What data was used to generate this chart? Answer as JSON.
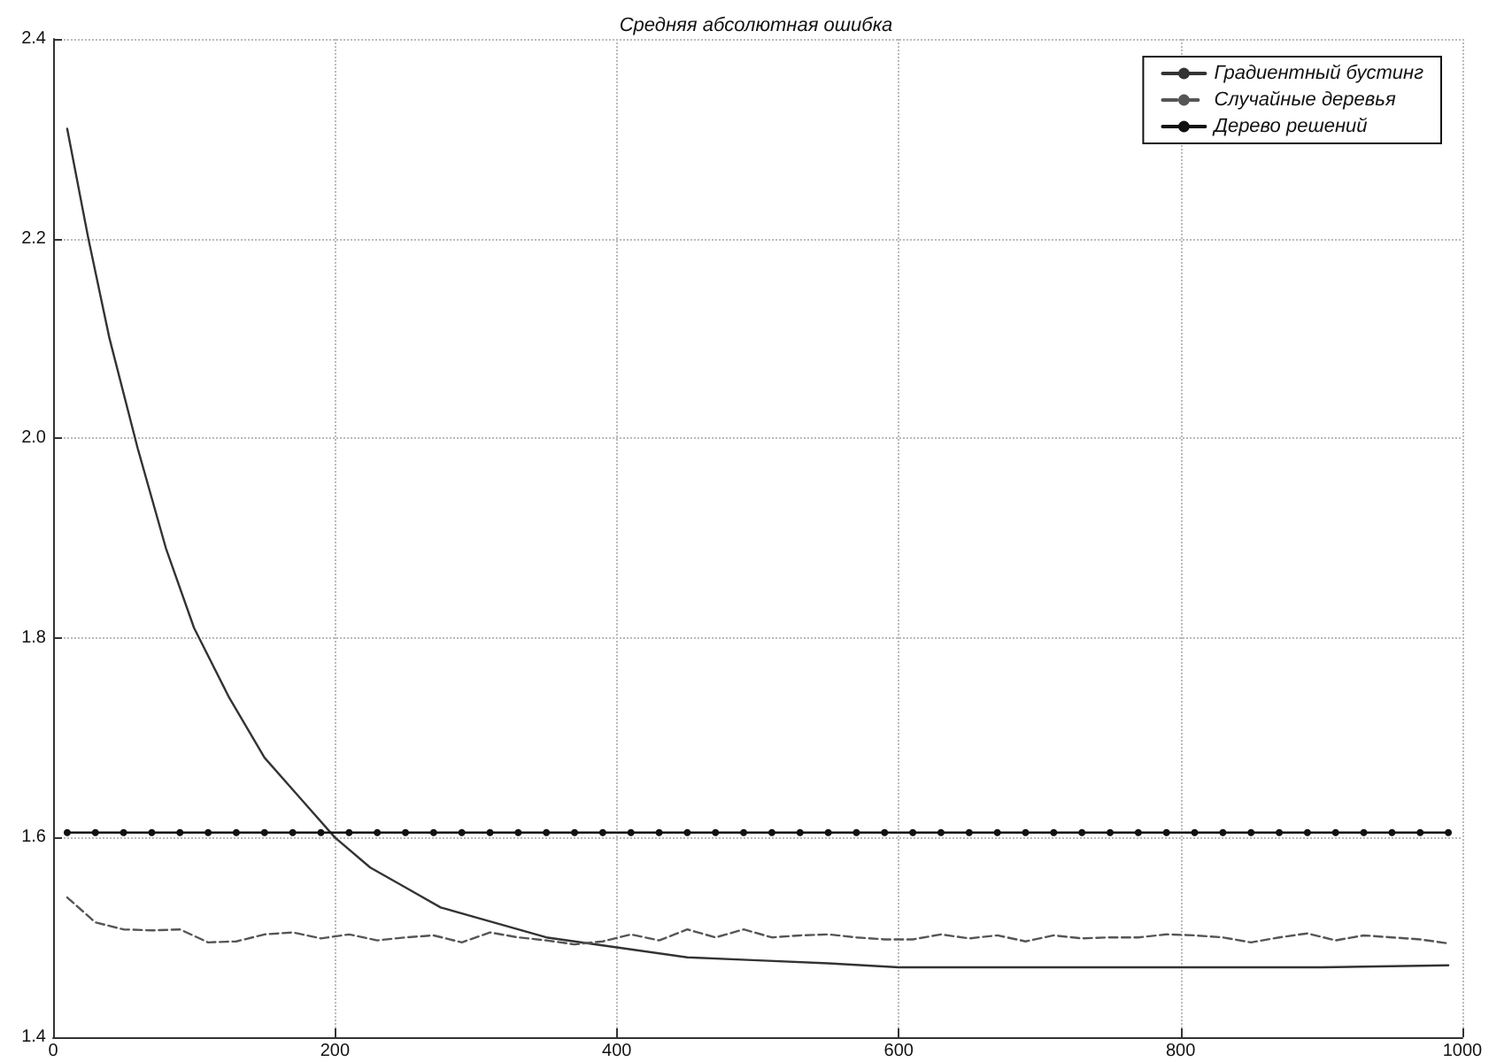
{
  "chart_data": {
    "type": "line",
    "title": "Средняя абсолютная ошибка",
    "xlim": [
      0,
      1000
    ],
    "xticks": [
      0,
      200,
      400,
      600,
      800,
      1000
    ],
    "ylim": [
      1.4,
      2.4
    ],
    "yticks": [
      1.4,
      1.6,
      1.8,
      {
        "value": 2,
        "label": "2.0"
      },
      2.2,
      2.4
    ],
    "grid": true,
    "legend": "top right",
    "series": [
      {
        "name": "Градиентный бустинг",
        "color": "#333333",
        "line_style": "solid",
        "marker": "none",
        "x": [
          10,
          25,
          40,
          60,
          80,
          100,
          125,
          150,
          175,
          200,
          225,
          250,
          275,
          300,
          350,
          400,
          450,
          500,
          550,
          600,
          700,
          800,
          900,
          990
        ],
        "values": [
          2.31,
          2.2,
          2.1,
          1.99,
          1.89,
          1.81,
          1.74,
          1.68,
          1.64,
          1.6,
          1.57,
          1.55,
          1.53,
          1.52,
          1.5,
          1.49,
          1.48,
          1.477,
          1.474,
          1.47,
          1.47,
          1.47,
          1.47,
          1.472
        ]
      },
      {
        "name": "Случайные деревья",
        "color": "#555555",
        "line_style": "dashed",
        "marker": "none",
        "x": [
          10,
          30,
          50,
          70,
          90,
          110,
          130,
          150,
          170,
          190,
          210,
          230,
          250,
          270,
          290,
          310,
          330,
          350,
          370,
          390,
          410,
          430,
          450,
          470,
          490,
          510,
          530,
          550,
          570,
          590,
          610,
          630,
          650,
          670,
          690,
          710,
          730,
          750,
          770,
          790,
          810,
          830,
          850,
          870,
          890,
          910,
          930,
          950,
          970,
          990
        ],
        "values": [
          1.54,
          1.515,
          1.508,
          1.507,
          1.508,
          1.495,
          1.496,
          1.503,
          1.505,
          1.499,
          1.503,
          1.497,
          1.5,
          1.502,
          1.495,
          1.505,
          1.5,
          1.497,
          1.493,
          1.496,
          1.503,
          1.497,
          1.508,
          1.5,
          1.508,
          1.5,
          1.502,
          1.503,
          1.5,
          1.498,
          1.498,
          1.503,
          1.499,
          1.502,
          1.496,
          1.502,
          1.499,
          1.5,
          1.5,
          1.503,
          1.502,
          1.5,
          1.495,
          1.5,
          1.504,
          1.497,
          1.502,
          1.5,
          1.498,
          1.494
        ]
      },
      {
        "name": "Дерево решений",
        "color": "#111111",
        "line_style": "solid",
        "marker": "circle",
        "x": [
          10,
          30,
          50,
          70,
          90,
          110,
          130,
          150,
          170,
          190,
          210,
          230,
          250,
          270,
          290,
          310,
          330,
          350,
          370,
          390,
          410,
          430,
          450,
          470,
          490,
          510,
          530,
          550,
          570,
          590,
          610,
          630,
          650,
          670,
          690,
          710,
          730,
          750,
          770,
          790,
          810,
          830,
          850,
          870,
          890,
          910,
          930,
          950,
          970,
          990
        ],
        "values": [
          1.605,
          1.605,
          1.605,
          1.605,
          1.605,
          1.605,
          1.605,
          1.605,
          1.605,
          1.605,
          1.605,
          1.605,
          1.605,
          1.605,
          1.605,
          1.605,
          1.605,
          1.605,
          1.605,
          1.605,
          1.605,
          1.605,
          1.605,
          1.605,
          1.605,
          1.605,
          1.605,
          1.605,
          1.605,
          1.605,
          1.605,
          1.605,
          1.605,
          1.605,
          1.605,
          1.605,
          1.605,
          1.605,
          1.605,
          1.605,
          1.605,
          1.605,
          1.605,
          1.605,
          1.605,
          1.605,
          1.605,
          1.605,
          1.605,
          1.605
        ]
      }
    ]
  }
}
